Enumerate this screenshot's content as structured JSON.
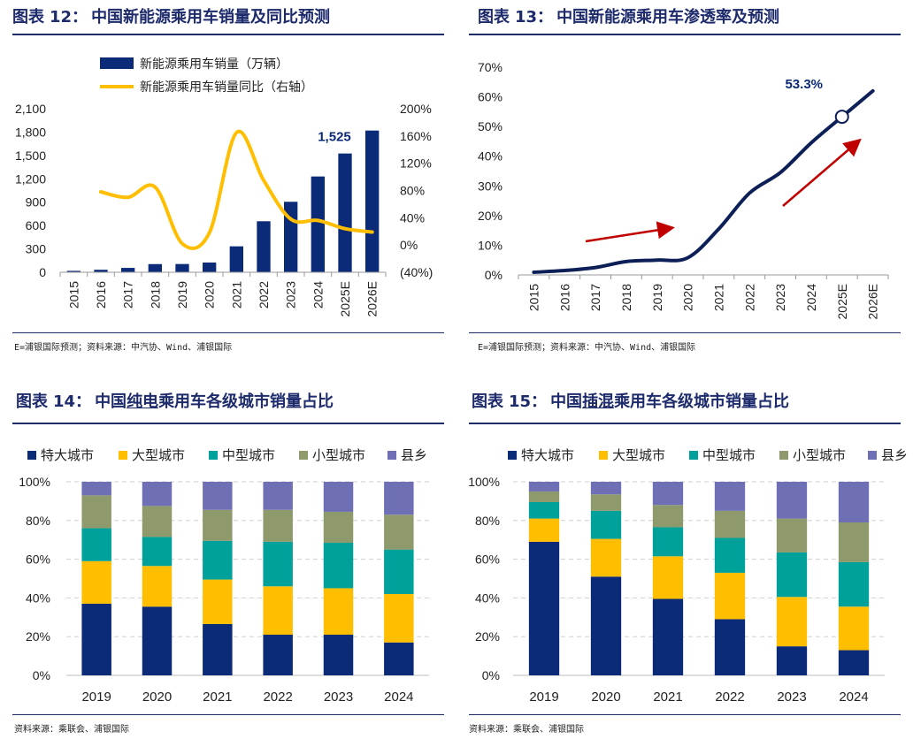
{
  "panels": [
    {
      "title_prefix": "图表",
      "title_num": "12：",
      "title_text": "中国新能源乘用车销量及同比预测",
      "source": "E=浦银国际预测；资料来源：中汽协、Wind、浦银国际"
    },
    {
      "title_prefix": "图表",
      "title_num": "13：",
      "title_text": "中国新能源乘用车渗透率及预测",
      "source": "E=浦银国际预测；资料来源：中汽协、Wind、浦银国际"
    },
    {
      "title_prefix": "图表",
      "title_num": "14：",
      "title_pre": "中国",
      "title_hl": "纯电",
      "title_post": "乘用车各级城市销量占比",
      "source": "资料来源：乘联会、浦银国际"
    },
    {
      "title_prefix": "图表",
      "title_num": "15：",
      "title_pre": "中国",
      "title_hl": "插混",
      "title_post": "乘用车各级城市销量占比",
      "source": "资料来源：乘联会、浦银国际"
    }
  ],
  "colors": {
    "navy": "#0b2a78",
    "gold": "#ffbf00",
    "teal": "#00a19a",
    "olive": "#8f9a6c",
    "purple": "#6e6fb5",
    "red": "#c00000",
    "title": "#1d2a6b"
  },
  "chart_data": [
    {
      "type": "bar",
      "title": "中国新能源乘用车销量及同比预测",
      "categories": [
        "2015",
        "2016",
        "2017",
        "2018",
        "2019",
        "2020",
        "2021",
        "2022",
        "2023",
        "2024",
        "2025E",
        "2026E"
      ],
      "series": [
        {
          "name": "新能源乘用车销量（万辆）",
          "kind": "bar",
          "axis": "left",
          "values": [
            18,
            32,
            56,
            105,
            106,
            125,
            333,
            655,
            905,
            1230,
            1525,
            1820
          ]
        },
        {
          "name": "新能源乘用车销量同比（右轴）",
          "kind": "line",
          "axis": "right",
          "values": [
            null,
            78,
            70,
            85,
            2,
            18,
            165,
            95,
            38,
            36,
            24,
            19
          ]
        }
      ],
      "ylim": [
        0,
        2100
      ],
      "yticks": [
        "0",
        "300",
        "600",
        "900",
        "1,200",
        "1,500",
        "1,800",
        "2,100"
      ],
      "y2lim": [
        -40,
        200
      ],
      "y2ticks": [
        "(40%)",
        "0%",
        "40%",
        "80%",
        "120%",
        "160%",
        "200%"
      ],
      "annotations": [
        {
          "category": "2025E",
          "label": "1,525"
        }
      ]
    },
    {
      "type": "line",
      "title": "中国新能源乘用车渗透率及预测",
      "categories": [
        "2015",
        "2016",
        "2017",
        "2018",
        "2019",
        "2020",
        "2021",
        "2022",
        "2023",
        "2024",
        "2025E",
        "2026E"
      ],
      "series": [
        {
          "name": "渗透率",
          "values": [
            0.9,
            1.5,
            2.5,
            4.5,
            5.0,
            5.8,
            15.5,
            27.6,
            34.5,
            44.5,
            53.3,
            62.0
          ]
        }
      ],
      "ylim": [
        0,
        70
      ],
      "yticks": [
        "0%",
        "10%",
        "20%",
        "30%",
        "40%",
        "50%",
        "60%",
        "70%"
      ],
      "annotations": [
        {
          "category": "2025E",
          "label": "53.3%"
        }
      ]
    },
    {
      "type": "bar",
      "stacked": true,
      "title": "中国纯电乘用车各级城市销量占比",
      "categories": [
        "2019",
        "2020",
        "2021",
        "2022",
        "2023",
        "2024"
      ],
      "series": [
        {
          "name": "特大城市",
          "values": [
            37,
            35.5,
            26.5,
            21,
            21,
            17
          ]
        },
        {
          "name": "大型城市",
          "values": [
            22,
            21,
            23,
            25,
            24,
            25
          ]
        },
        {
          "name": "中型城市",
          "values": [
            17,
            15,
            20,
            23,
            23.5,
            23
          ]
        },
        {
          "name": "小型城市",
          "values": [
            17,
            16,
            16,
            16.5,
            16,
            18
          ]
        },
        {
          "name": "县乡",
          "values": [
            7,
            12.5,
            14.5,
            14.5,
            15.5,
            17
          ]
        }
      ],
      "ylim": [
        0,
        100
      ],
      "yticks": [
        "0%",
        "20%",
        "40%",
        "60%",
        "80%",
        "100%"
      ]
    },
    {
      "type": "bar",
      "stacked": true,
      "title": "中国插混乘用车各级城市销量占比",
      "categories": [
        "2019",
        "2020",
        "2021",
        "2022",
        "2023",
        "2024"
      ],
      "series": [
        {
          "name": "特大城市",
          "values": [
            69,
            51,
            39.5,
            29,
            15,
            13
          ]
        },
        {
          "name": "大型城市",
          "values": [
            12,
            19.5,
            22,
            24,
            25.5,
            22.5
          ]
        },
        {
          "name": "中型城市",
          "values": [
            8.5,
            14.5,
            15,
            18,
            23,
            23
          ]
        },
        {
          "name": "小型城市",
          "values": [
            5.5,
            8.5,
            11.5,
            14,
            17.5,
            20.5
          ]
        },
        {
          "name": "县乡",
          "values": [
            5,
            6.5,
            12,
            15,
            19,
            21
          ]
        }
      ],
      "ylim": [
        0,
        100
      ],
      "yticks": [
        "0%",
        "20%",
        "40%",
        "60%",
        "80%",
        "100%"
      ]
    }
  ]
}
